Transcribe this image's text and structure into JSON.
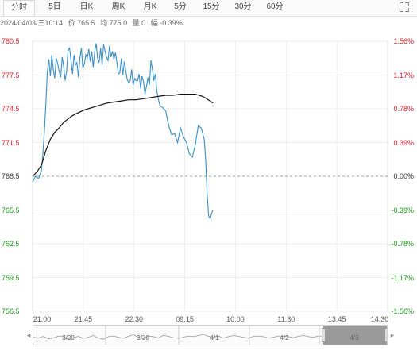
{
  "tabs": [
    "分时",
    "5日",
    "日K",
    "周K",
    "月K",
    "5分",
    "15分",
    "30分",
    "60分"
  ],
  "active_tab": 0,
  "info": {
    "datetime": "2024/04/03/三10:14",
    "price": "价 765.5",
    "avg": "均 775.0",
    "volume": "量 0",
    "change": "幅 -0.39%"
  },
  "colors": {
    "up": "#e8202a",
    "down": "#1a9c1a",
    "price_line": "#3a8fc9",
    "avg_line": "#111111",
    "neutral": "#333333"
  },
  "chart_data": {
    "type": "line",
    "y_left": [
      "780.5",
      "777.5",
      "774.5",
      "771.5",
      "768.5",
      "765.5",
      "762.5",
      "759.5",
      "756.5"
    ],
    "y_right": [
      "1.56%",
      "1.17%",
      "0.78%",
      "0.39%",
      "0.00%",
      "-0.39%",
      "-0.78%",
      "-1.17%",
      "-1.56%"
    ],
    "ylim": [
      756.5,
      780.5
    ],
    "baseline": 768.5,
    "x_ticks": [
      "21:00",
      "21:45",
      "22:30",
      "09:15",
      "10:00",
      "11:30",
      "13:45",
      "14:30"
    ],
    "series": [
      {
        "x": [
          0,
          2,
          4,
          6,
          7,
          8,
          9,
          10,
          11,
          12,
          13,
          14,
          15,
          16,
          17,
          18,
          19,
          20,
          21,
          22,
          23,
          24,
          25,
          26,
          27,
          28,
          29,
          30,
          31,
          32,
          33,
          34,
          35,
          36,
          37,
          38,
          39,
          40,
          41,
          42,
          43,
          44,
          45,
          46,
          47,
          48,
          49,
          50,
          51,
          52,
          53,
          54,
          55,
          56,
          57,
          58,
          59,
          60,
          61,
          62,
          63,
          64,
          65,
          66,
          67,
          68,
          69,
          70,
          71,
          72,
          73,
          74,
          75,
          76,
          77,
          78,
          79,
          80,
          81,
          82,
          83,
          84,
          85,
          86,
          88,
          90,
          92,
          94,
          96,
          98,
          100,
          102,
          104,
          106,
          108,
          110,
          112,
          114,
          116,
          117,
          118,
          119,
          120,
          121,
          122
        ],
        "y": [
          768.0,
          768.5,
          768.3,
          769.0,
          770.5,
          772.5,
          775.0,
          777.8,
          778.9,
          777.4,
          779.3,
          778.0,
          777.2,
          779.0,
          778.5,
          777.8,
          777.3,
          779.1,
          778.3,
          777.0,
          777.8,
          779.7,
          779.9,
          778.8,
          777.6,
          779.3,
          778.4,
          778.6,
          777.3,
          779.0,
          779.9,
          778.1,
          778.5,
          779.3,
          779.0,
          779.8,
          778.7,
          779.6,
          778.2,
          779.6,
          780.3,
          779.0,
          778.6,
          779.9,
          778.4,
          780.2,
          779.6,
          779.1,
          778.8,
          780.1,
          779.1,
          779.6,
          778.9,
          779.5,
          778.6,
          777.6,
          777.7,
          779.0,
          777.5,
          778.7,
          777.9,
          777.1,
          776.8,
          777.0,
          778.0,
          776.6,
          777.2,
          777.0,
          777.0,
          777.6,
          776.3,
          777.4,
          776.9,
          775.8,
          776.5,
          777.3,
          776.6,
          778.8,
          778.0,
          777.0,
          777.6,
          776.1,
          775.4,
          774.8,
          774.6,
          774.3,
          773.0,
          772.2,
          772.3,
          771.5,
          772.8,
          772.0,
          771.5,
          770.5,
          770.2,
          771.3,
          773.0,
          772.8,
          771.8,
          770.0,
          766.9,
          765.0,
          764.7,
          765.2,
          765.5
        ]
      },
      {
        "x": [
          0,
          3,
          6,
          9,
          12,
          15,
          18,
          21,
          24,
          27,
          30,
          35,
          40,
          45,
          50,
          55,
          60,
          65,
          70,
          75,
          80,
          85,
          90,
          95,
          100,
          105,
          110,
          115,
          120,
          122
        ],
        "y": [
          768.5,
          768.9,
          769.5,
          770.8,
          771.8,
          772.4,
          772.8,
          773.3,
          773.6,
          773.9,
          774.1,
          774.4,
          774.6,
          774.8,
          775.0,
          775.1,
          775.2,
          775.3,
          775.3,
          775.4,
          775.5,
          775.6,
          775.7,
          775.7,
          775.8,
          775.8,
          775.8,
          775.6,
          775.2,
          775.0
        ]
      }
    ],
    "session_count": 240
  },
  "navigator": {
    "labels": [
      "3/29",
      "3/30",
      "4/1",
      "4/2",
      "4/3"
    ],
    "series": [
      0.55,
      0.5,
      0.6,
      0.45,
      0.5,
      0.62,
      0.58,
      0.4,
      0.52,
      0.6,
      0.48,
      0.55,
      0.65,
      0.5,
      0.42,
      0.58,
      0.62,
      0.55,
      0.48,
      0.6,
      0.7,
      0.55,
      0.45,
      0.62,
      0.58,
      0.5,
      0.66,
      0.6,
      0.52,
      0.48,
      0.55,
      0.62,
      0.58,
      0.65,
      0.72,
      0.6,
      0.55,
      0.62,
      0.5,
      0.58,
      0.65,
      0.6,
      0.55,
      0.48,
      0.6,
      0.62,
      0.58,
      0.5,
      0.55,
      0.62,
      0.6,
      0.58,
      0.52,
      0.6,
      0.65,
      0.58,
      0.55,
      0.62,
      0.6,
      0.66,
      0.7,
      0.62,
      0.58,
      0.6,
      0.65,
      0.55,
      0.5,
      0.6,
      0.62,
      0.58,
      0.72,
      0.55
    ]
  }
}
